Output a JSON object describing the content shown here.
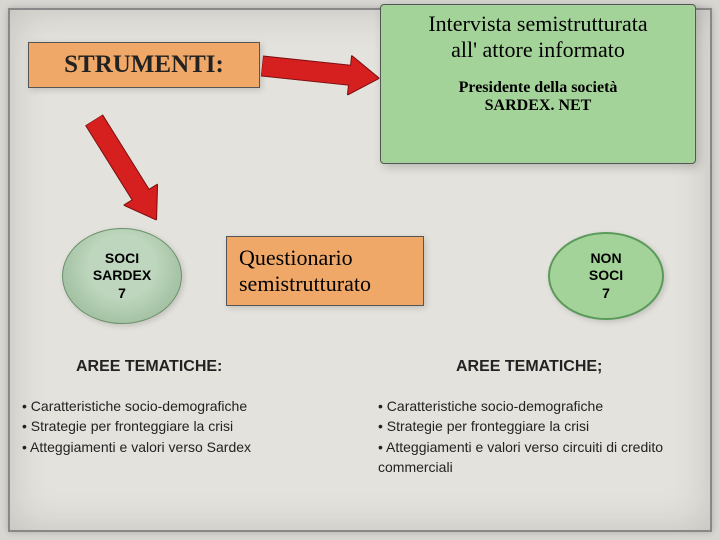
{
  "title": "STRUMENTI:",
  "greenCard": {
    "line1": "Intervista semistrutturata",
    "line2": "all' attore informato",
    "sub1": "Presidente della società",
    "sub2": "SARDEX. NET",
    "bg": "#a4d39a"
  },
  "leftEllipse": {
    "l1": "SOCI",
    "l2": "SARDEX",
    "l3": "7"
  },
  "rightEllipse": {
    "l1": "NON",
    "l2": "SOCI",
    "l3": "7"
  },
  "questBox": {
    "l1": "Questionario",
    "l2": "semistrutturato"
  },
  "areaHeadingLeft": "AREE TEMATICHE:",
  "areaHeadingRight": "AREE TEMATICHE;",
  "bulletsLeft": [
    "• Caratteristiche socio-demografiche",
    "• Strategie per fronteggiare la crisi",
    "• Atteggiamenti e valori  verso Sardex"
  ],
  "bulletsRight": [
    "• Caratteristiche socio-demografiche",
    "• Strategie per fronteggiare la crisi",
    "• Atteggiamenti e valori verso circuiti di credito  commerciali"
  ],
  "colors": {
    "orange": "#f0a868",
    "green": "#a4d39a",
    "arrow": "#d62020",
    "paper": "#e4e2dc",
    "bg": "#d8d6d1"
  },
  "arrow": {
    "width": 118,
    "height": 40,
    "shaftHeight": 20,
    "headWidth": 30
  }
}
